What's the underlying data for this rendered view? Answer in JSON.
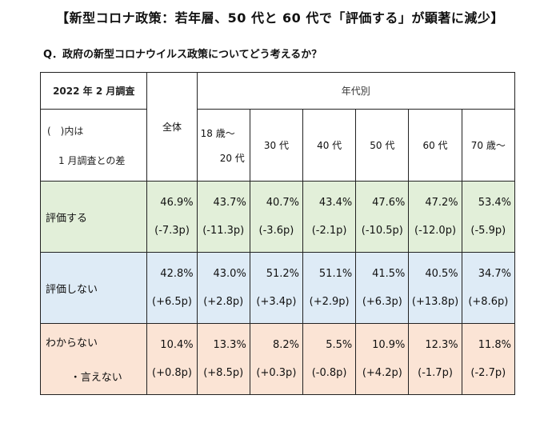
{
  "title": "【新型コロナ政策：若年層、50 代と 60 代で「評価する」が顕著に減少】",
  "question": "Q．政府の新型コロナウイルス政策についてどう考えるか？",
  "header": {
    "survey_label": "2022 年 2 月調査",
    "note_line1": "(　)内は",
    "note_line2": "1 月調査との差",
    "total": "全体",
    "group": "年代別",
    "age_first_line1": "18 歳～",
    "age_first_line2": "20 代",
    "ages": [
      "30 代",
      "40 代",
      "50 代",
      "60 代",
      "70 歳～"
    ]
  },
  "rows": [
    {
      "label": "評価する",
      "values": [
        "46.9%",
        "43.7%",
        "40.7%",
        "43.4%",
        "47.6%",
        "47.2%",
        "53.4%"
      ],
      "diffs": [
        "(-7.3p)",
        "(-11.3p)",
        "(-3.6p)",
        "(-2.1p)",
        "(-10.5p)",
        "(-12.0p)",
        "(-5.9p)"
      ]
    },
    {
      "label": "評価しない",
      "values": [
        "42.8%",
        "43.0%",
        "51.2%",
        "51.1%",
        "41.5%",
        "40.5%",
        "34.7%"
      ],
      "diffs": [
        "(+6.5p)",
        "(+2.8p)",
        "(+3.4p)",
        "(+2.9p)",
        "(+6.3p)",
        "(+13.8p)",
        "(+8.6p)"
      ]
    },
    {
      "label": "わからない",
      "label2": "・言えない",
      "values": [
        "10.4%",
        "13.3%",
        "8.2%",
        "5.5%",
        "10.9%",
        "12.3%",
        "11.8%"
      ],
      "diffs": [
        "(+0.8p)",
        "(+8.5p)",
        "(+0.3p)",
        "(-0.8p)",
        "(+4.2p)",
        "(-1.7p)",
        "(-2.7p)"
      ]
    }
  ],
  "colors": {
    "row_positive": "#e2efd9",
    "row_negative": "#deebf6",
    "row_unknown": "#fbe4d5"
  }
}
